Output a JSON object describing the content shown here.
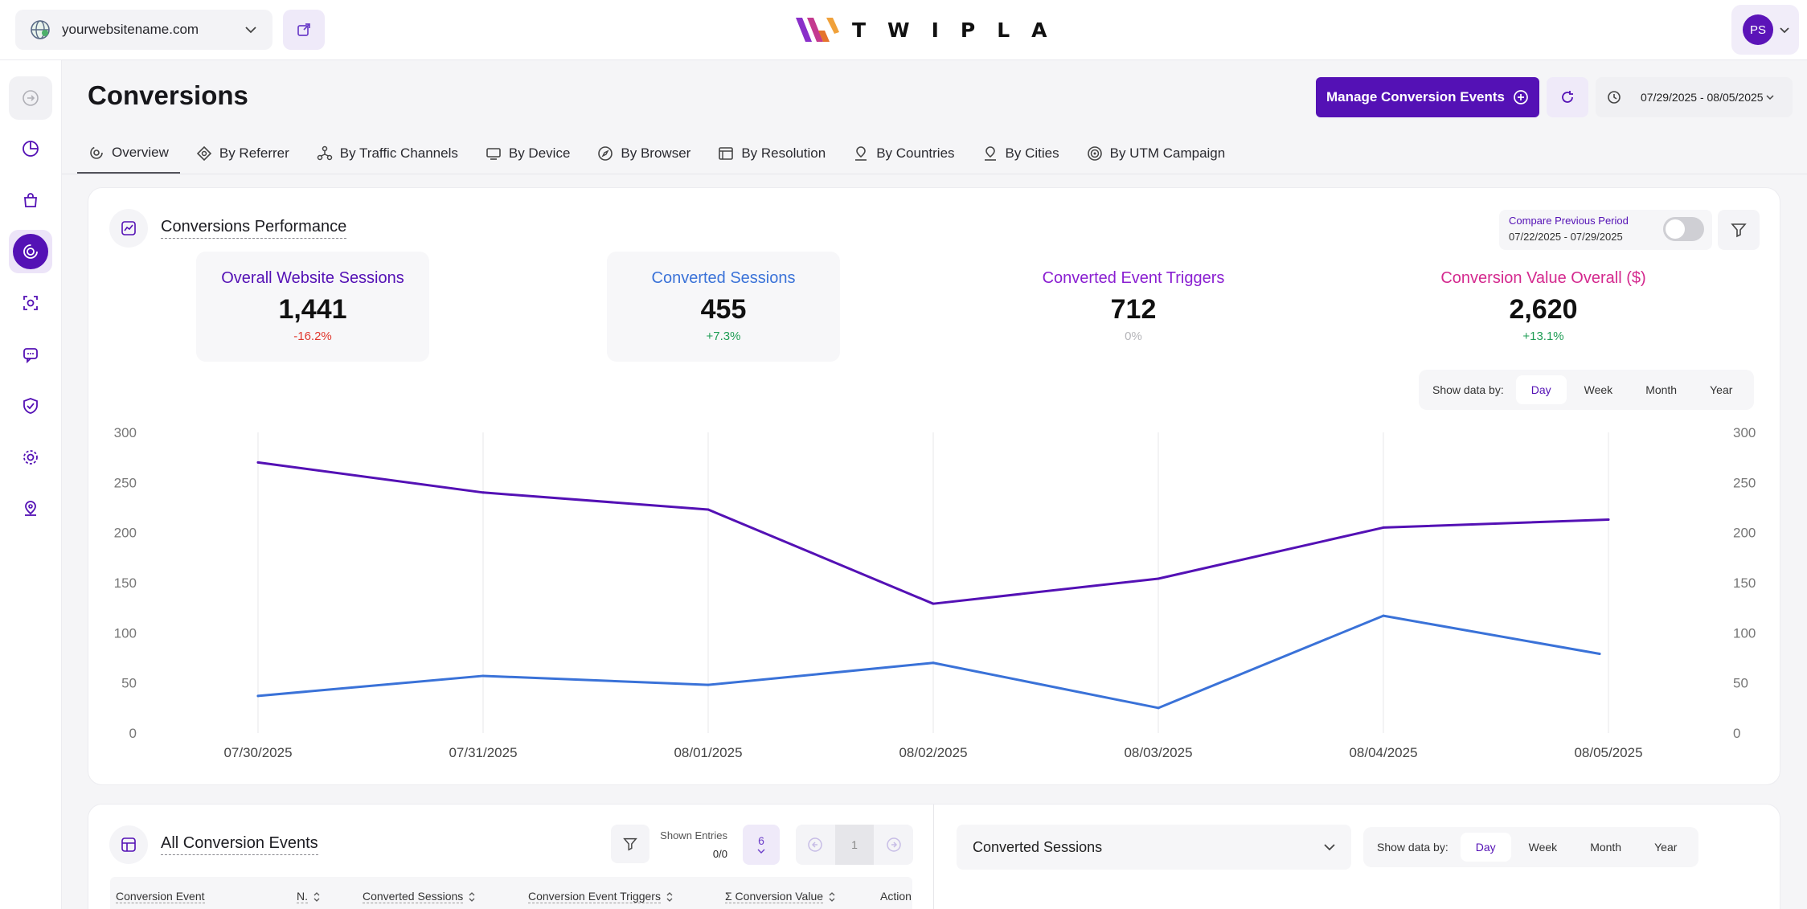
{
  "topbar": {
    "site": "yourwebsitename.com",
    "logo_text": "TWIPLA",
    "avatar_initials": "PS"
  },
  "header": {
    "title": "Conversions",
    "manage_button": "Manage Conversion Events",
    "date_range": "07/29/2025 - 08/05/2025"
  },
  "tabs": [
    {
      "label": "Overview",
      "icon": "overview-icon"
    },
    {
      "label": "By Referrer",
      "icon": "referrer-icon"
    },
    {
      "label": "By Traffic Channels",
      "icon": "traffic-channels-icon"
    },
    {
      "label": "By Device",
      "icon": "device-icon"
    },
    {
      "label": "By Browser",
      "icon": "browser-icon"
    },
    {
      "label": "By Resolution",
      "icon": "resolution-icon"
    },
    {
      "label": "By Countries",
      "icon": "countries-icon"
    },
    {
      "label": "By Cities",
      "icon": "cities-icon"
    },
    {
      "label": "By UTM Campaign",
      "icon": "utm-campaign-icon"
    }
  ],
  "performance": {
    "title": "Conversions Performance",
    "compare_label": "Compare Previous Period",
    "compare_range": "07/22/2025 - 07/29/2025",
    "metrics": [
      {
        "label": "Overall Website Sessions",
        "value": "1,441",
        "change": "-16.2%",
        "color": "#5411b5",
        "change_color": "#e0362c"
      },
      {
        "label": "Converted Sessions",
        "value": "455",
        "change": "+7.3%",
        "color": "#3a72d8",
        "change_color": "#1f9d55"
      },
      {
        "label": "Converted Event Triggers",
        "value": "712",
        "change": "0%",
        "color": "#8a1fd1",
        "change_color": "#b5b5b9"
      },
      {
        "label": "Conversion Value Overall ($)",
        "value": "2,620",
        "change": "+13.1%",
        "color": "#d4298e",
        "change_color": "#1f9d55"
      }
    ],
    "show_by_label": "Show data by:",
    "show_by_options": [
      "Day",
      "Week",
      "Month",
      "Year"
    ],
    "show_by_selected": "Day"
  },
  "chart_data": {
    "type": "line",
    "x": [
      "07/30/2025",
      "07/31/2025",
      "08/01/2025",
      "08/02/2025",
      "08/03/2025",
      "08/04/2025",
      "08/05/2025"
    ],
    "series": [
      {
        "values": [
          270,
          240,
          223,
          129,
          154,
          205,
          213
        ],
        "color": "#5411b5"
      },
      {
        "values": [
          37,
          57,
          48,
          70,
          25,
          117,
          79
        ],
        "color": "#3a72d8"
      }
    ],
    "y_ticks": [
      0,
      50,
      100,
      150,
      200,
      250,
      300
    ],
    "ylim": [
      0,
      300
    ],
    "grid": "vertical"
  },
  "events": {
    "title": "All Conversion Events",
    "shown_entries_label": "Shown Entries",
    "shown_entries_value": "0/0",
    "page_size": "6",
    "current_page": "1",
    "columns": [
      "Conversion Event",
      "N.",
      "Converted Sessions",
      "Conversion Event Triggers",
      "Σ Conversion Value",
      "Action"
    ]
  },
  "sessions_panel": {
    "selector": "Converted Sessions",
    "show_by_label": "Show data by:",
    "show_by_options": [
      "Day",
      "Week",
      "Month",
      "Year"
    ],
    "show_by_selected": "Day"
  }
}
